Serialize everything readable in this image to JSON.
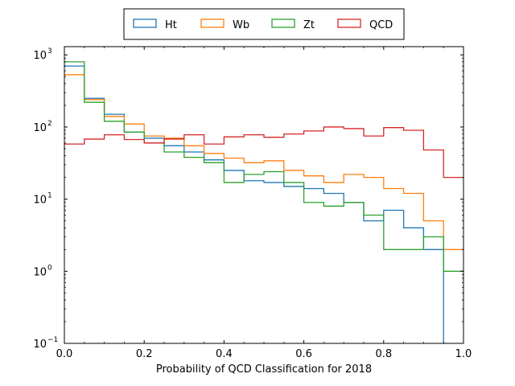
{
  "chart_data": {
    "type": "histogram-step",
    "xlabel": "Probability of QCD Classification for 2018",
    "ylabel": "",
    "xlim": [
      0.0,
      1.0
    ],
    "ylim": [
      0.1,
      1300
    ],
    "yscale": "log",
    "grid": false,
    "legend_position": "top-center",
    "x_ticks": [
      {
        "value": 0.0,
        "label": "0.0"
      },
      {
        "value": 0.2,
        "label": "0.2"
      },
      {
        "value": 0.4,
        "label": "0.4"
      },
      {
        "value": 0.6,
        "label": "0.6"
      },
      {
        "value": 0.8,
        "label": "0.8"
      },
      {
        "value": 1.0,
        "label": "1.0"
      }
    ],
    "y_ticks": [
      {
        "value": 0.1,
        "base": "10",
        "exp": "−1"
      },
      {
        "value": 1,
        "base": "10",
        "exp": "0"
      },
      {
        "value": 10,
        "base": "10",
        "exp": "1"
      },
      {
        "value": 100,
        "base": "10",
        "exp": "2"
      },
      {
        "value": 1000,
        "base": "10",
        "exp": "3"
      }
    ],
    "bin_edges": [
      0.0,
      0.05,
      0.1,
      0.15,
      0.2,
      0.25,
      0.3,
      0.35,
      0.4,
      0.45,
      0.5,
      0.55,
      0.6,
      0.65,
      0.7,
      0.75,
      0.8,
      0.85,
      0.9,
      0.95,
      1.0
    ],
    "series": [
      {
        "name": "Ht",
        "color": "#1f77b4",
        "values": [
          700,
          250,
          150,
          85,
          70,
          55,
          45,
          35,
          25,
          18,
          17,
          15,
          14,
          12,
          9,
          5,
          7,
          4,
          2,
          0
        ]
      },
      {
        "name": "Wb",
        "color": "#ff7f0e",
        "values": [
          530,
          240,
          140,
          110,
          75,
          70,
          55,
          43,
          37,
          32,
          34,
          25,
          21,
          17,
          22,
          20,
          14,
          12,
          5,
          2
        ]
      },
      {
        "name": "Zt",
        "color": "#2ca02c",
        "values": [
          800,
          220,
          120,
          85,
          60,
          45,
          38,
          32,
          17,
          22,
          24,
          17,
          9,
          8,
          9,
          6,
          2,
          2,
          3,
          1
        ]
      },
      {
        "name": "QCD",
        "color": "#d62728",
        "values": [
          58,
          68,
          78,
          67,
          60,
          68,
          78,
          58,
          73,
          78,
          72,
          80,
          88,
          100,
          95,
          75,
          98,
          90,
          48,
          20
        ]
      }
    ]
  }
}
